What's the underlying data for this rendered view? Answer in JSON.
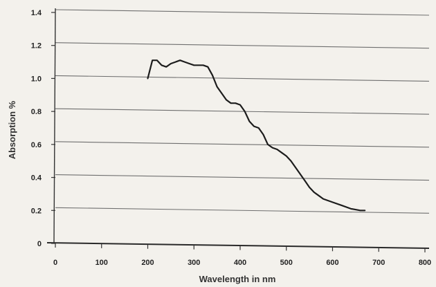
{
  "chart_data": {
    "type": "line",
    "title": "",
    "xlabel": "Wavelength in nm",
    "ylabel": "Absorption %",
    "xlim": [
      0,
      800
    ],
    "ylim": [
      0,
      1.4
    ],
    "x_ticks": [
      0,
      100,
      200,
      300,
      400,
      500,
      600,
      700,
      800
    ],
    "x_tick_labels": [
      "0",
      "100",
      "200",
      "300",
      "400",
      "500",
      "600",
      "700",
      "800"
    ],
    "y_ticks": [
      0,
      0.2,
      0.4,
      0.6,
      0.8,
      1.0,
      1.2,
      1.4
    ],
    "y_tick_labels": [
      "0",
      "0.2",
      "0.4",
      "0.6",
      "0.8",
      "1.0",
      "1.2",
      "1.4"
    ],
    "grid": "horizontal",
    "legend": "none",
    "line_color": "#1c1c1c",
    "grid_color": "#6e6e6e",
    "series": [
      {
        "x": [
          200,
          210,
          220,
          230,
          240,
          250,
          260,
          270,
          280,
          290,
          300,
          310,
          320,
          330,
          340,
          350,
          360,
          370,
          380,
          390,
          400,
          410,
          420,
          430,
          440,
          450,
          460,
          470,
          480,
          490,
          500,
          510,
          520,
          530,
          540,
          550,
          560,
          570,
          580,
          590,
          600,
          620,
          640,
          660,
          670
        ],
        "y": [
          1.0,
          1.11,
          1.11,
          1.08,
          1.07,
          1.09,
          1.1,
          1.11,
          1.1,
          1.09,
          1.08,
          1.08,
          1.08,
          1.07,
          1.02,
          0.95,
          0.91,
          0.87,
          0.85,
          0.85,
          0.84,
          0.8,
          0.74,
          0.71,
          0.7,
          0.66,
          0.6,
          0.58,
          0.57,
          0.55,
          0.53,
          0.5,
          0.46,
          0.42,
          0.38,
          0.34,
          0.31,
          0.29,
          0.27,
          0.26,
          0.25,
          0.23,
          0.21,
          0.2,
          0.2
        ]
      }
    ]
  }
}
